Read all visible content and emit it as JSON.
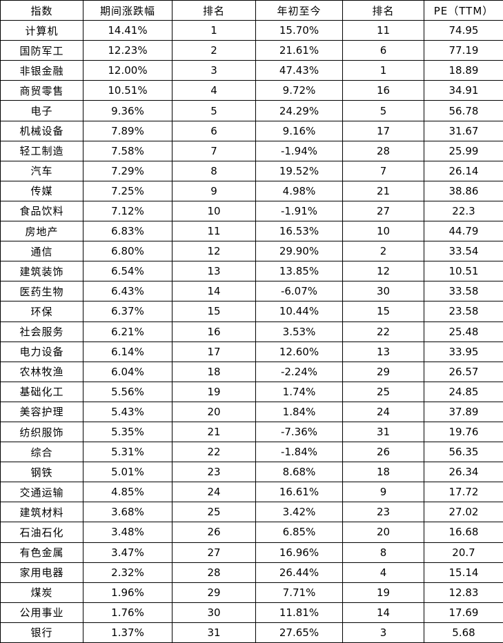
{
  "table": {
    "headers": [
      "指数",
      "期间涨跌幅",
      "排名",
      "年初至今",
      "排名",
      "PE（TTM）"
    ],
    "rows": [
      [
        "计算机",
        "14.41%",
        "1",
        "15.70%",
        "11",
        "74.95"
      ],
      [
        "国防军工",
        "12.23%",
        "2",
        "21.61%",
        "6",
        "77.19"
      ],
      [
        "非银金融",
        "12.00%",
        "3",
        "47.43%",
        "1",
        "18.89"
      ],
      [
        "商贸零售",
        "10.51%",
        "4",
        "9.72%",
        "16",
        "34.91"
      ],
      [
        "电子",
        "9.36%",
        "5",
        "24.29%",
        "5",
        "56.78"
      ],
      [
        "机械设备",
        "7.89%",
        "6",
        "9.16%",
        "17",
        "31.67"
      ],
      [
        "轻工制造",
        "7.58%",
        "7",
        "-1.94%",
        "28",
        "25.99"
      ],
      [
        "汽车",
        "7.29%",
        "8",
        "19.52%",
        "7",
        "26.14"
      ],
      [
        "传媒",
        "7.25%",
        "9",
        "4.98%",
        "21",
        "38.86"
      ],
      [
        "食品饮料",
        "7.12%",
        "10",
        "-1.91%",
        "27",
        "22.3"
      ],
      [
        "房地产",
        "6.83%",
        "11",
        "16.53%",
        "10",
        "44.79"
      ],
      [
        "通信",
        "6.80%",
        "12",
        "29.90%",
        "2",
        "33.54"
      ],
      [
        "建筑装饰",
        "6.54%",
        "13",
        "13.85%",
        "12",
        "10.51"
      ],
      [
        "医药生物",
        "6.43%",
        "14",
        "-6.07%",
        "30",
        "33.58"
      ],
      [
        "环保",
        "6.37%",
        "15",
        "10.44%",
        "15",
        "23.58"
      ],
      [
        "社会服务",
        "6.21%",
        "16",
        "3.53%",
        "22",
        "25.48"
      ],
      [
        "电力设备",
        "6.14%",
        "17",
        "12.60%",
        "13",
        "33.95"
      ],
      [
        "农林牧渔",
        "6.04%",
        "18",
        "-2.24%",
        "29",
        "26.57"
      ],
      [
        "基础化工",
        "5.56%",
        "19",
        "1.74%",
        "25",
        "24.85"
      ],
      [
        "美容护理",
        "5.43%",
        "20",
        "1.84%",
        "24",
        "37.89"
      ],
      [
        "纺织服饰",
        "5.35%",
        "21",
        "-7.36%",
        "31",
        "19.76"
      ],
      [
        "综合",
        "5.31%",
        "22",
        "-1.84%",
        "26",
        "56.35"
      ],
      [
        "钢铁",
        "5.01%",
        "23",
        "8.68%",
        "18",
        "26.34"
      ],
      [
        "交通运输",
        "4.85%",
        "24",
        "16.61%",
        "9",
        "17.72"
      ],
      [
        "建筑材料",
        "3.68%",
        "25",
        "3.42%",
        "23",
        "27.02"
      ],
      [
        "石油石化",
        "3.48%",
        "26",
        "6.85%",
        "20",
        "16.68"
      ],
      [
        "有色金属",
        "3.47%",
        "27",
        "16.96%",
        "8",
        "20.7"
      ],
      [
        "家用电器",
        "2.32%",
        "28",
        "26.44%",
        "4",
        "15.14"
      ],
      [
        "煤炭",
        "1.96%",
        "29",
        "7.71%",
        "19",
        "12.83"
      ],
      [
        "公用事业",
        "1.76%",
        "30",
        "11.81%",
        "14",
        "17.69"
      ],
      [
        "银行",
        "1.37%",
        "31",
        "27.65%",
        "3",
        "5.68"
      ]
    ]
  }
}
